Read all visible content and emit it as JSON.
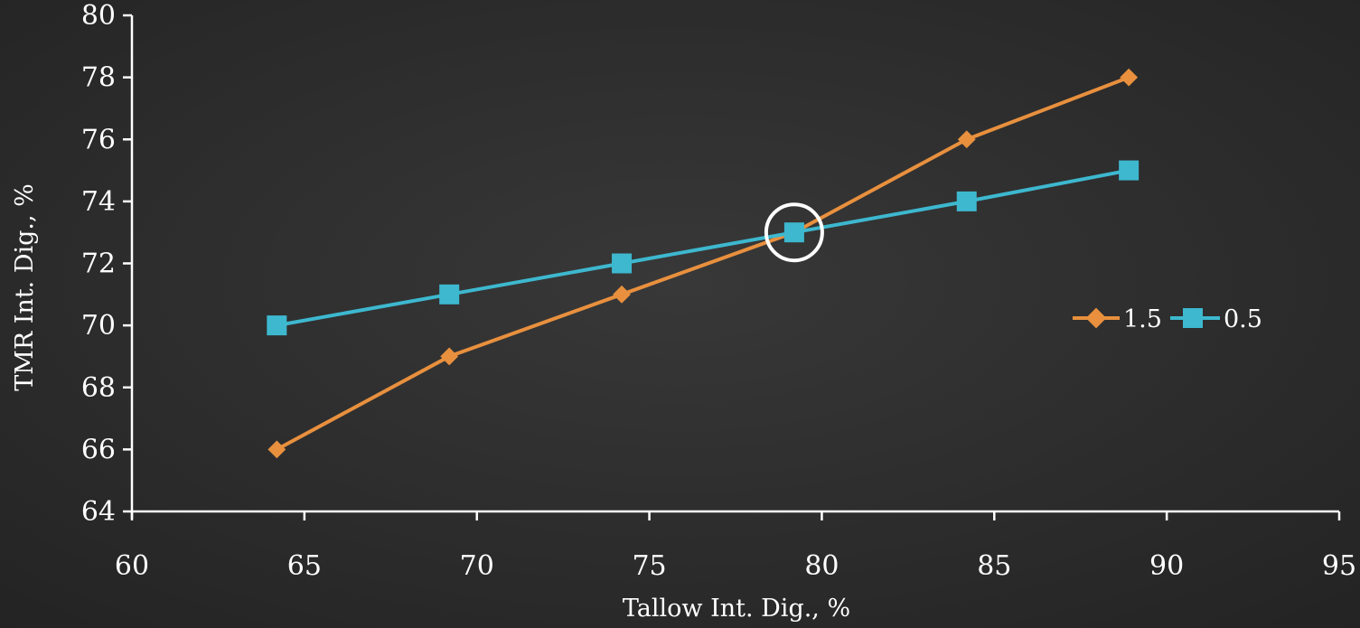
{
  "chart_data": {
    "type": "line",
    "xlabel": "Tallow Int. Dig., %",
    "ylabel": "TMR Int. Dig., %",
    "xlim": [
      60,
      95
    ],
    "ylim": [
      64,
      80
    ],
    "xticks": [
      "60",
      "65",
      "70",
      "75",
      "80",
      "85",
      "90",
      "95"
    ],
    "yticks": [
      "64",
      "66",
      "68",
      "70",
      "72",
      "74",
      "76",
      "78",
      "80"
    ],
    "grid": false,
    "legend_position": "right",
    "series": [
      {
        "name": "1.5",
        "color": "#e8903e",
        "marker": "diamond",
        "points": [
          {
            "x": 64.2,
            "y": 66
          },
          {
            "x": 69.2,
            "y": 69
          },
          {
            "x": 74.2,
            "y": 71
          },
          {
            "x": 79.2,
            "y": 73
          },
          {
            "x": 84.2,
            "y": 76
          },
          {
            "x": 88.9,
            "y": 78
          }
        ]
      },
      {
        "name": "0.5",
        "color": "#3db8cf",
        "marker": "square",
        "points": [
          {
            "x": 64.2,
            "y": 70
          },
          {
            "x": 69.2,
            "y": 71
          },
          {
            "x": 74.2,
            "y": 72
          },
          {
            "x": 79.2,
            "y": 73
          },
          {
            "x": 84.2,
            "y": 74
          },
          {
            "x": 88.9,
            "y": 75
          }
        ]
      }
    ],
    "annotations": [
      {
        "type": "circle",
        "x": 79.2,
        "y": 73,
        "color": "#ffffff"
      }
    ]
  }
}
